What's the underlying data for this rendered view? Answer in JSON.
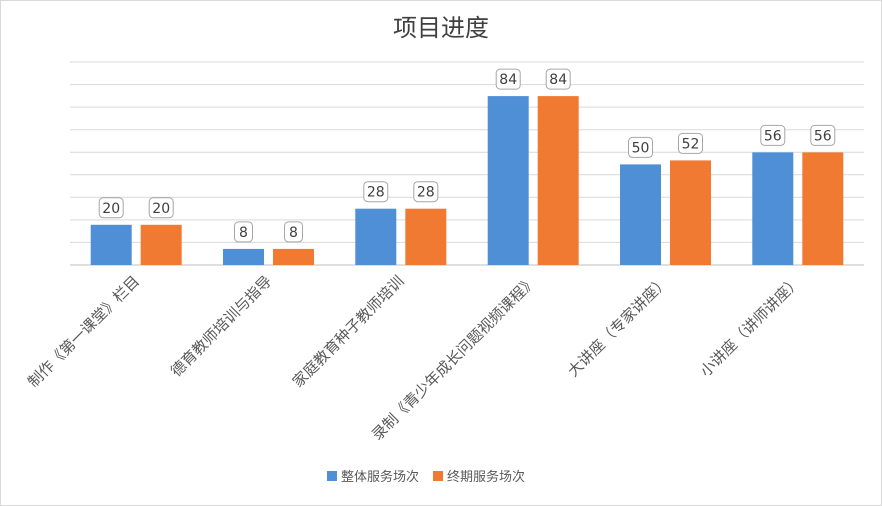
{
  "chart_data": {
    "type": "bar",
    "title": "项目进度",
    "categories": [
      "制作《第一课堂》栏目",
      "德育教师培训与指导",
      "家庭教育种子教师培训",
      "录制《青少年成长问题视频课程》",
      "大讲座（专家讲座）",
      "小讲座（讲师讲座）"
    ],
    "series": [
      {
        "name": "整体服务场次",
        "color": "#4e8fd6",
        "values": [
          20,
          8,
          28,
          84,
          50,
          56
        ]
      },
      {
        "name": "终期服务场次",
        "color": "#f07a32",
        "values": [
          20,
          8,
          28,
          84,
          52,
          56
        ]
      }
    ],
    "ylim": [
      0,
      90
    ],
    "gridlines": true,
    "legend_position": "bottom",
    "xlabel": "",
    "ylabel": ""
  }
}
